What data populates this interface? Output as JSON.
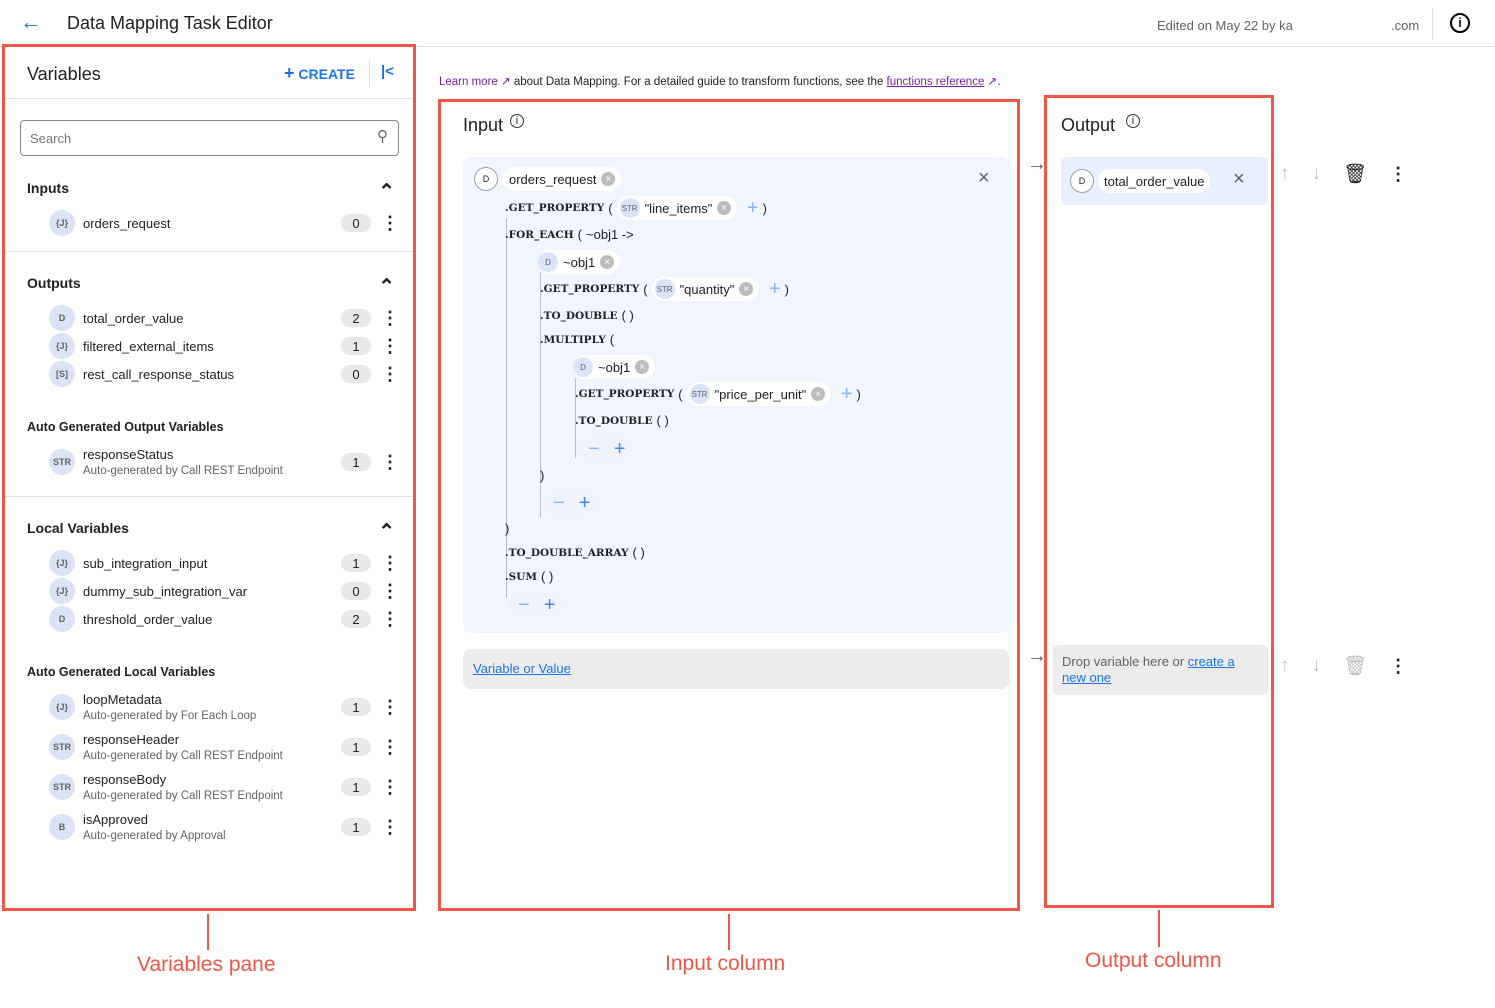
{
  "header": {
    "title": "Data Mapping Task Editor",
    "edited": "Edited on May 22 by ka",
    "edited_suffix": ".com"
  },
  "vars": {
    "title": "Variables",
    "create": "CREATE",
    "search_placeholder": "Search",
    "sections": [
      {
        "title": "Inputs",
        "items": [
          {
            "type": "{J}",
            "name": "orders_request",
            "count": "0"
          }
        ]
      },
      {
        "title": "Outputs",
        "items": [
          {
            "type": "D",
            "name": "total_order_value",
            "count": "2"
          },
          {
            "type": "{J}",
            "name": "filtered_external_items",
            "count": "1"
          },
          {
            "type": "[S]",
            "name": "rest_call_response_status",
            "count": "0"
          }
        ],
        "auto_title": "Auto Generated Output Variables",
        "auto": [
          {
            "type": "STR",
            "name": "responseStatus",
            "sub": "Auto-generated by Call REST Endpoint",
            "count": "1"
          }
        ]
      },
      {
        "title": "Local Variables",
        "items": [
          {
            "type": "{J}",
            "name": "sub_integration_input",
            "count": "1"
          },
          {
            "type": "{J}",
            "name": "dummy_sub_integration_var",
            "count": "0"
          },
          {
            "type": "D",
            "name": "threshold_order_value",
            "count": "2"
          }
        ],
        "auto_title": "Auto Generated Local Variables",
        "auto": [
          {
            "type": "{J}",
            "name": "loopMetadata",
            "sub": "Auto-generated by For Each Loop",
            "count": "1"
          },
          {
            "type": "STR",
            "name": "responseHeader",
            "sub": "Auto-generated by Call REST Endpoint",
            "count": "1"
          },
          {
            "type": "STR",
            "name": "responseBody",
            "sub": "Auto-generated by Call REST Endpoint",
            "count": "1"
          },
          {
            "type": "B",
            "name": "isApproved",
            "sub": "Auto-generated by Approval",
            "count": "1"
          }
        ]
      }
    ]
  },
  "info": {
    "learn_more": "Learn more",
    "mid": "about Data Mapping. For a detailed guide to transform functions, see the",
    "ref": "functions reference",
    "end": "."
  },
  "input": {
    "title": "Input",
    "root": "orders_request",
    "root_type": "D",
    "gp": ".GET_PROPERTY",
    "fe": ".FOR_EACH",
    "fe_arg": "~obj1 ->",
    "obj": "~obj1",
    "str": "STR",
    "line_items": "\"line_items\"",
    "quantity": "\"quantity\"",
    "ppu": "\"price_per_unit\"",
    "td": ".TO_DOUBLE",
    "mul": ".MULTIPLY",
    "tda": ".TO_DOUBLE_ARRAY",
    "sum": ".SUM",
    "open": "(",
    "close": ")",
    "empty_parens": "( )",
    "placeholder": "Variable or Value"
  },
  "output": {
    "title": "Output",
    "var": "total_order_value",
    "type": "D",
    "drop": "Drop variable here or",
    "create_link": "create a new one"
  },
  "annotations": {
    "vars": "Variables pane",
    "input": "Input column",
    "output": "Output column"
  },
  "colors": {
    "accent": "#1a73e8",
    "annotation": "#f05545"
  }
}
